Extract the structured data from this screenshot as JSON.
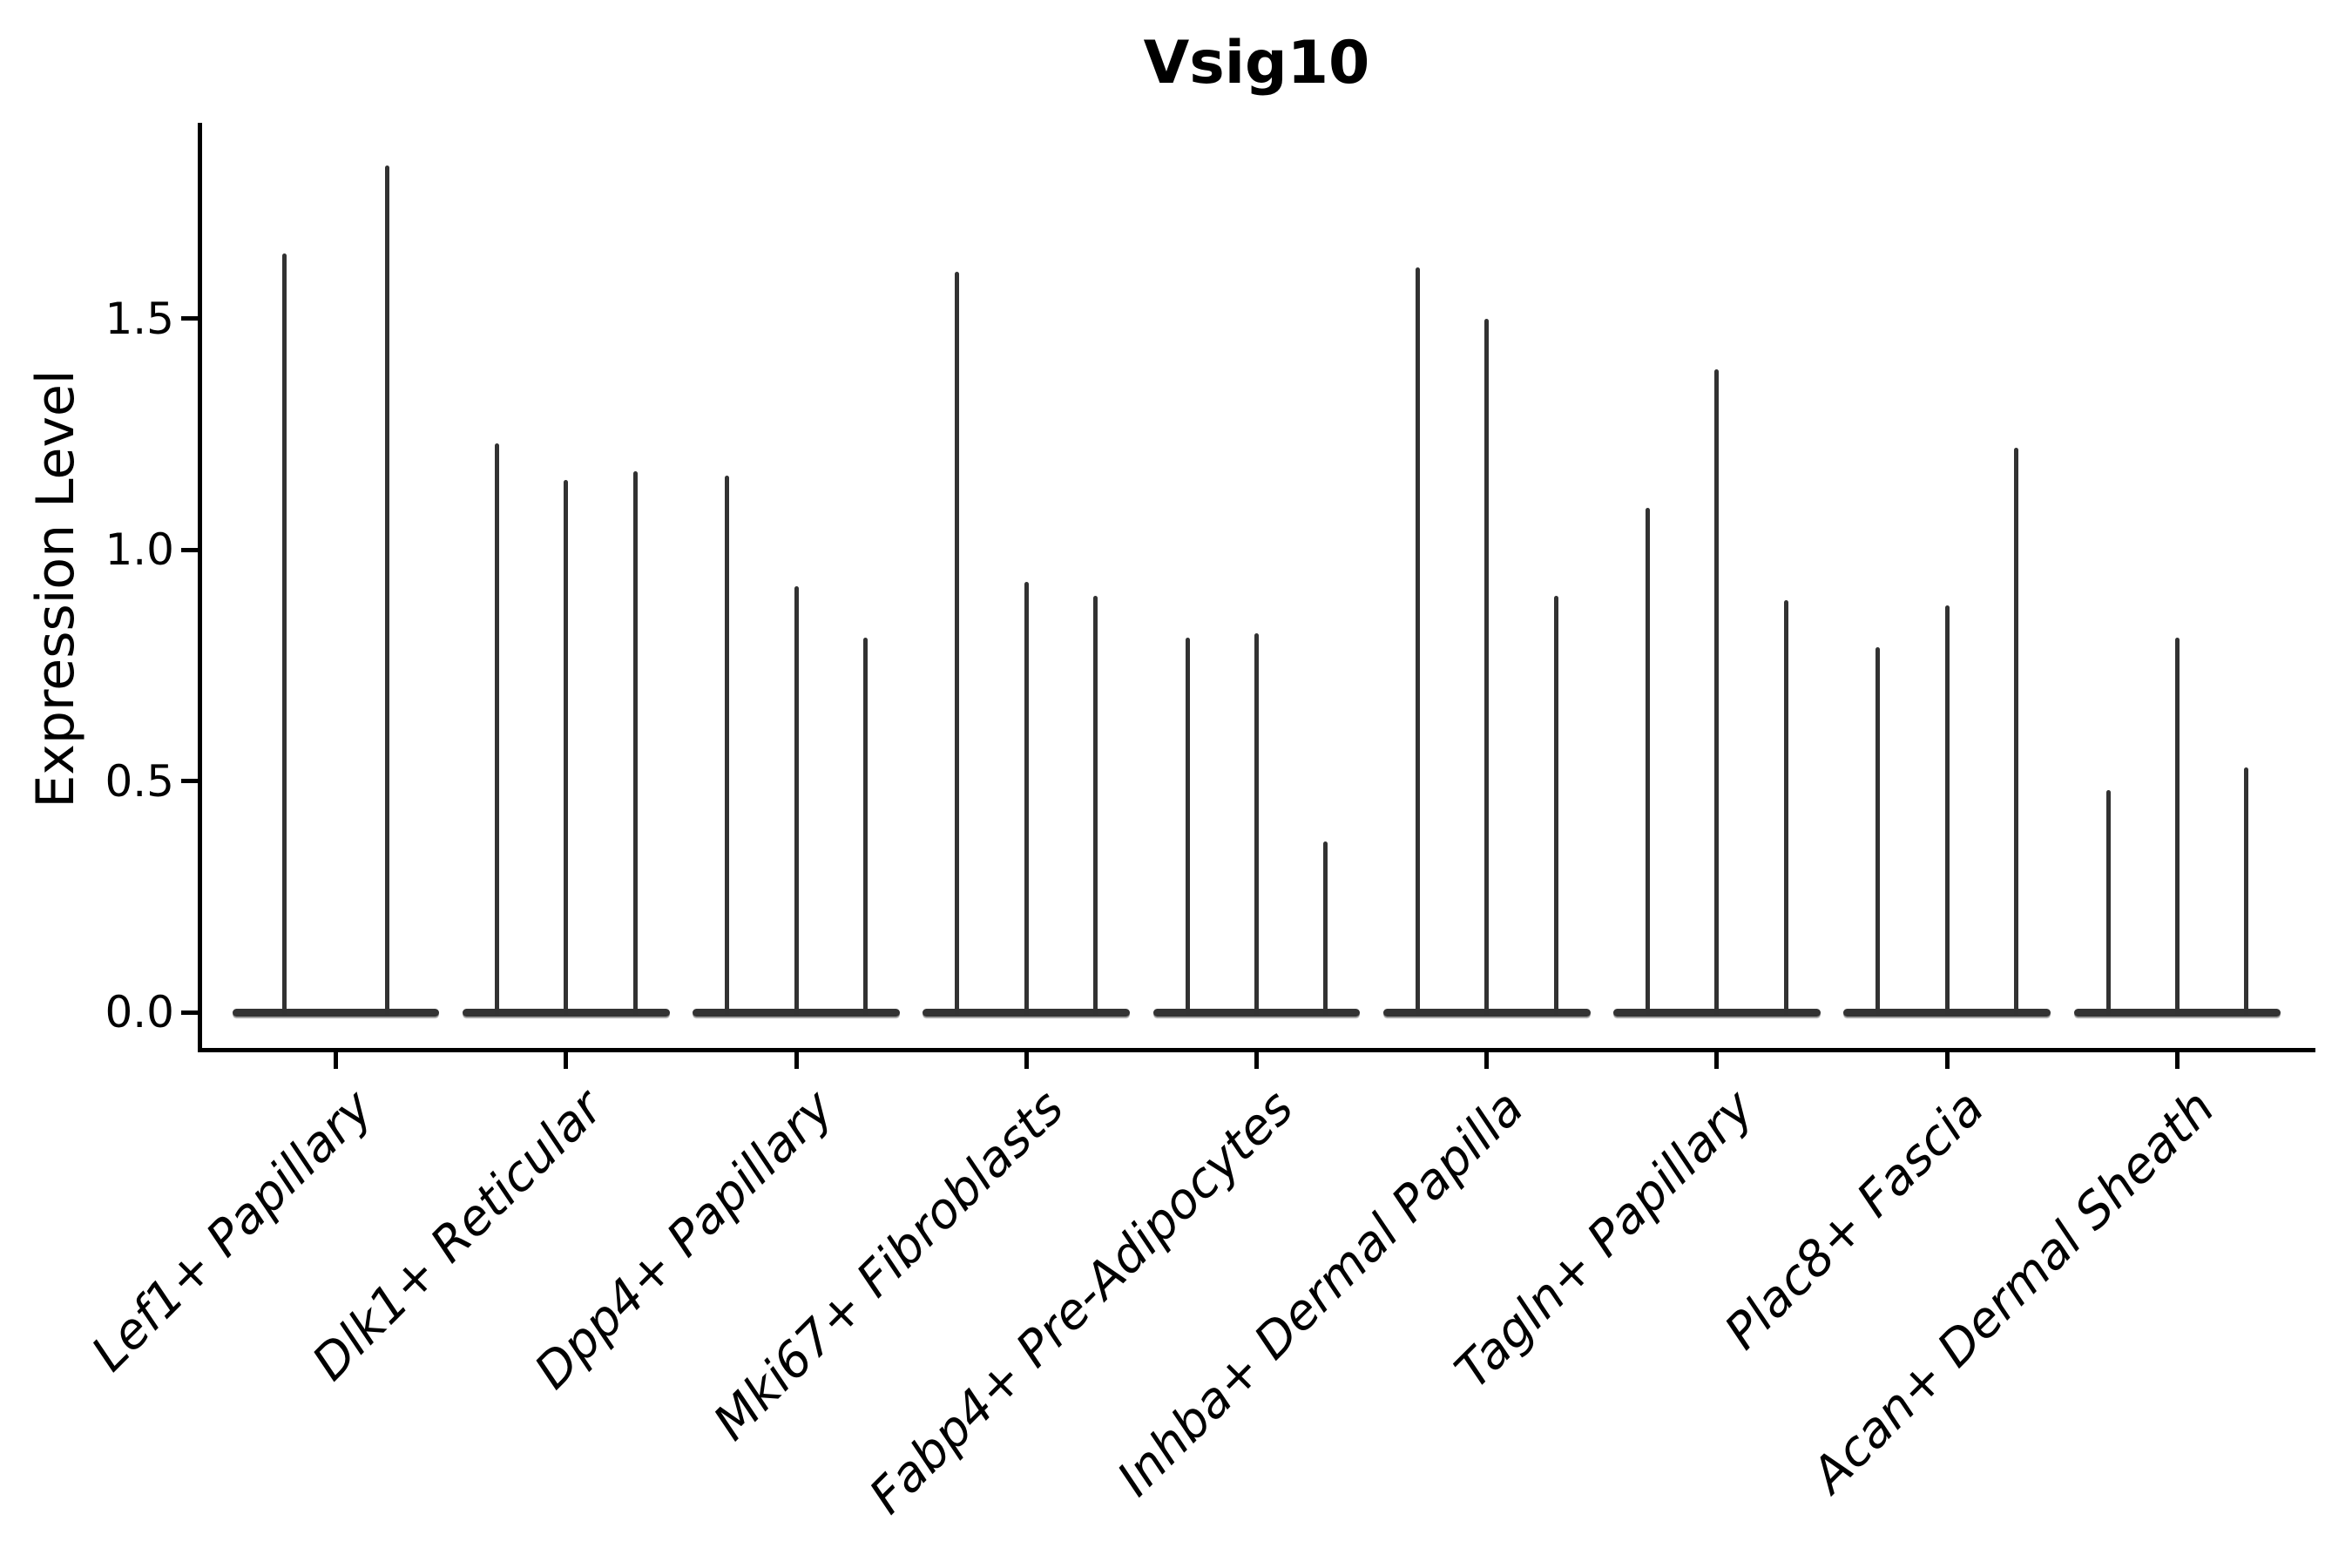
{
  "figure": {
    "background": "#ffffff",
    "axis_color": "#000000",
    "violin_color": "#333333"
  },
  "chart_data": {
    "type": "violin",
    "title": "Vsig10",
    "xlabel": "",
    "ylabel": "Expression Level",
    "ylim": [
      -0.09,
      1.92
    ],
    "yticks": [
      0.0,
      0.5,
      1.0,
      1.5
    ],
    "ytick_labels": [
      "0.0",
      "0.5",
      "1.0",
      "1.5"
    ],
    "grid": false,
    "legend_position": "none",
    "style": "needle violins: expression mass concentrated at 0 (wide flat base) with thin spikes rising to each violin's maximum",
    "x_tick_rotation_deg": 45,
    "categories": [
      "Lef1+ Papillary",
      "Dlk1+ Reticular",
      "Dpp4+ Papillary",
      "Mki67+ Fibroblasts",
      "Fabp4+ Pre-Adipocytes",
      "Inhba+ Dermal Papilla",
      "Tagln+ Papillary",
      "Plac8+ Fascia",
      "Acan+ Dermal Sheath"
    ],
    "groups": [
      {
        "category": "Lef1+ Papillary",
        "violin_max_values": [
          1.64,
          1.83
        ]
      },
      {
        "category": "Dlk1+ Reticular",
        "violin_max_values": [
          1.23,
          1.15,
          1.17
        ]
      },
      {
        "category": "Dpp4+ Papillary",
        "violin_max_values": [
          1.16,
          0.92,
          0.81
        ]
      },
      {
        "category": "Mki67+ Fibroblasts",
        "violin_max_values": [
          1.6,
          0.93,
          0.9
        ]
      },
      {
        "category": "Fabp4+ Pre-Adipocytes",
        "violin_max_values": [
          0.81,
          0.82,
          0.37
        ]
      },
      {
        "category": "Inhba+ Dermal Papilla",
        "violin_max_values": [
          1.61,
          1.5,
          0.9
        ]
      },
      {
        "category": "Tagln+ Papillary",
        "violin_max_values": [
          1.09,
          1.39,
          0.89
        ]
      },
      {
        "category": "Plac8+ Fascia",
        "violin_max_values": [
          0.79,
          0.88,
          1.22
        ]
      },
      {
        "category": "Acan+ Dermal Sheath",
        "violin_max_values": [
          0.48,
          0.81,
          0.53
        ]
      }
    ]
  }
}
